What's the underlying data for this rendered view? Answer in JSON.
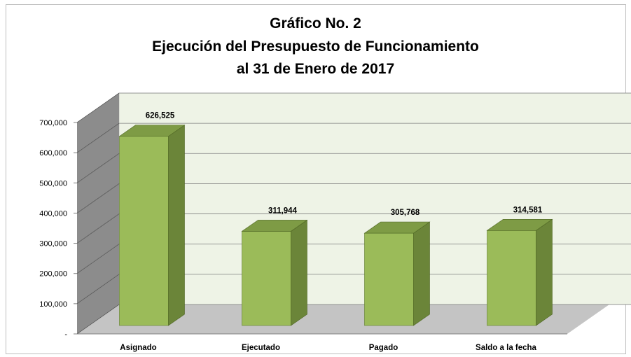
{
  "chart_data": {
    "type": "bar",
    "title": [
      "Gráfico No. 2",
      "Ejecución del Presupuesto de Funcionamiento",
      "al 31 de Enero de 2017"
    ],
    "categories": [
      "Asignado",
      "Ejecutado",
      "Pagado",
      "Saldo a la fecha"
    ],
    "values": [
      626525,
      311944,
      305768,
      314581
    ],
    "value_labels": [
      "626,525",
      "311,944",
      "305,768",
      "314,581"
    ],
    "ylim": [
      0,
      700000
    ],
    "yticks": [
      0,
      100000,
      200000,
      300000,
      400000,
      500000,
      600000,
      700000
    ],
    "ytick_labels": [
      "-",
      "100,000",
      "200,000",
      "300,000",
      "400,000",
      "500,000",
      "600,000",
      "700,000"
    ],
    "grid": true,
    "style": "3d-column",
    "colors": {
      "bar_front": "#9bbb59",
      "bar_side": "#6b8539",
      "bar_top": "#7e9b45",
      "wall": "#eef3e6",
      "side_wall": "#8c8c8c",
      "floor": "#c4c4c4"
    }
  }
}
